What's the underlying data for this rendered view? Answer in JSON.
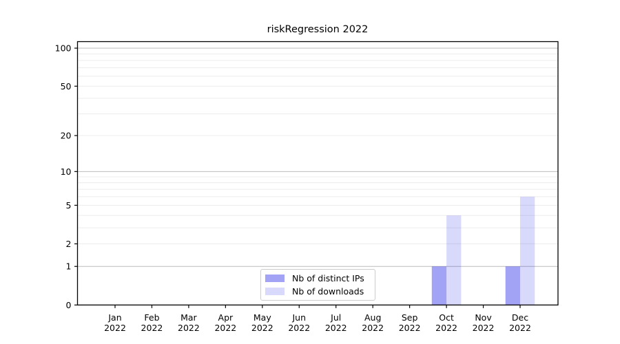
{
  "chart_data": {
    "type": "bar",
    "title": "riskRegression 2022",
    "categories": [
      "Jan",
      "Feb",
      "Mar",
      "Apr",
      "May",
      "Jun",
      "Jul",
      "Aug",
      "Sep",
      "Oct",
      "Nov",
      "Dec"
    ],
    "year_label": "2022",
    "series": [
      {
        "name": "Nb of distinct IPs",
        "color": "rgba(0,0,230,0.36)",
        "values": [
          0,
          0,
          0,
          0,
          0,
          0,
          0,
          0,
          0,
          1,
          0,
          1
        ]
      },
      {
        "name": "Nb of downloads",
        "color": "rgba(0,0,230,0.15)",
        "values": [
          0,
          0,
          0,
          0,
          0,
          0,
          0,
          0,
          0,
          4,
          0,
          6
        ]
      }
    ],
    "yscale": "log1p",
    "ylim": [
      0,
      100
    ],
    "yticks": [
      0,
      1,
      2,
      5,
      10,
      20,
      50,
      100
    ],
    "gridlines": {
      "major": [
        1,
        10,
        100
      ],
      "minor": [
        2,
        3,
        4,
        5,
        6,
        7,
        8,
        9,
        20,
        30,
        40,
        50,
        60,
        70,
        80,
        90
      ]
    },
    "grid": "horizontal",
    "legend_position": "bottom-center",
    "colors": {
      "major_gridline": "#bbbbbb",
      "minor_gridline": "#ececec",
      "axis": "#000000"
    }
  }
}
